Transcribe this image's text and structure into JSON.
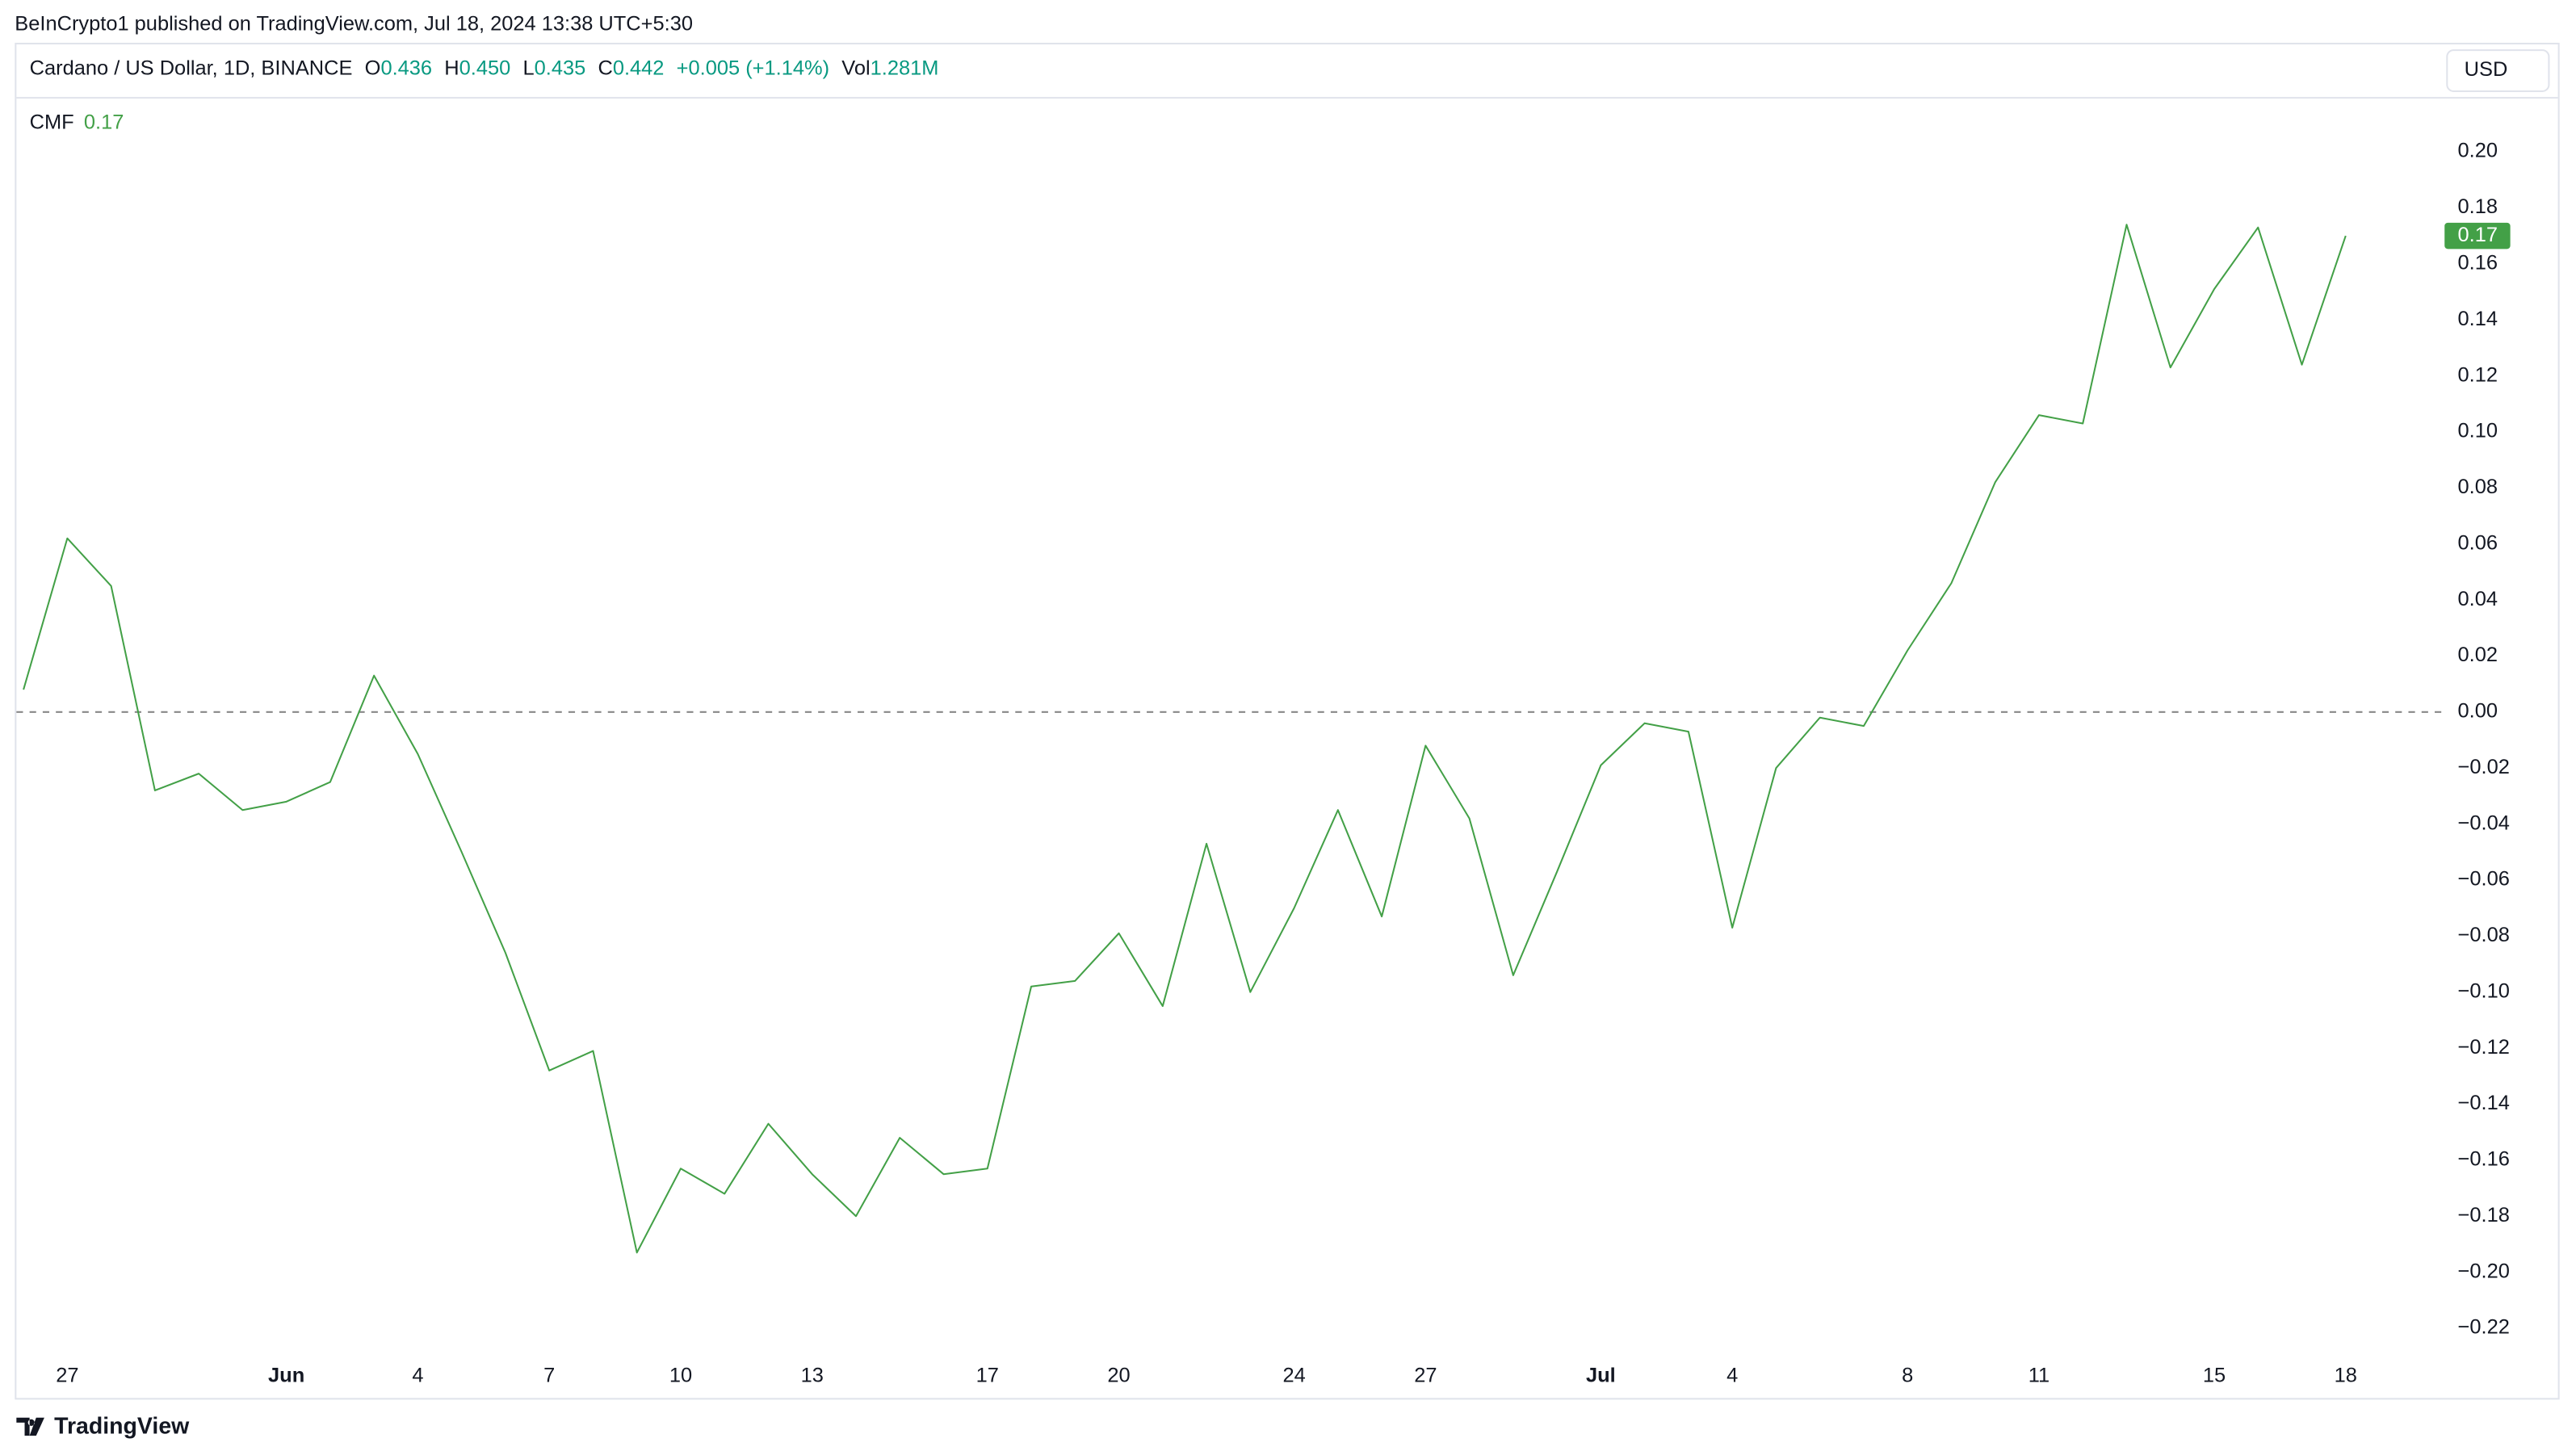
{
  "header": {
    "published": "BeInCrypto1 published on TradingView.com, Jul 18, 2024 13:38 UTC+5:30"
  },
  "symbol_bar": {
    "symbol": "Cardano / US Dollar, 1D, BINANCE",
    "open_label": "O",
    "open": "0.436",
    "high_label": "H",
    "high": "0.450",
    "low_label": "L",
    "low": "0.435",
    "close_label": "C",
    "close": "0.442",
    "change": "+0.005 (+1.14%)",
    "volume_label": "Vol",
    "volume": "1.281M",
    "currency": "USD"
  },
  "footer": {
    "brand": "TradingView"
  },
  "chart_data": {
    "type": "line",
    "indicator": "CMF",
    "indicator_value": "0.17",
    "categories": [
      null,
      "27",
      null,
      null,
      null,
      null,
      "Jun",
      null,
      null,
      "4",
      null,
      null,
      "7",
      null,
      null,
      "10",
      null,
      null,
      "13",
      null,
      null,
      null,
      "17",
      null,
      null,
      "20",
      null,
      null,
      null,
      "24",
      null,
      null,
      "27",
      null,
      null,
      null,
      "Jul",
      null,
      null,
      "4",
      null,
      null,
      null,
      "8",
      null,
      null,
      "11",
      null,
      null,
      null,
      "15",
      null,
      null,
      "18"
    ],
    "series": [
      {
        "name": "CMF",
        "color": "#43a047",
        "values": [
          0.008,
          0.062,
          0.045,
          -0.028,
          -0.022,
          -0.035,
          -0.032,
          -0.025,
          0.013,
          -0.015,
          -0.05,
          -0.086,
          -0.128,
          -0.121,
          -0.193,
          -0.163,
          -0.172,
          -0.147,
          -0.165,
          -0.18,
          -0.152,
          -0.165,
          -0.163,
          -0.098,
          -0.096,
          -0.079,
          -0.105,
          -0.047,
          -0.1,
          -0.07,
          -0.035,
          -0.073,
          -0.012,
          -0.038,
          -0.094,
          -0.057,
          -0.019,
          -0.004,
          -0.007,
          -0.077,
          -0.02,
          -0.002,
          -0.005,
          0.022,
          0.046,
          0.082,
          0.106,
          0.103,
          0.174,
          0.123,
          0.151,
          0.173,
          0.124,
          0.17
        ],
        "last_value_label": "0.17"
      }
    ],
    "ylim": [
      -0.23,
      0.219
    ],
    "yticks": [
      {
        "value": 0.2,
        "label": "0.20"
      },
      {
        "value": 0.18,
        "label": "0.18"
      },
      {
        "value": 0.16,
        "label": "0.16"
      },
      {
        "value": 0.14,
        "label": "0.14"
      },
      {
        "value": 0.12,
        "label": "0.12"
      },
      {
        "value": 0.1,
        "label": "0.10"
      },
      {
        "value": 0.08,
        "label": "0.08"
      },
      {
        "value": 0.06,
        "label": "0.06"
      },
      {
        "value": 0.04,
        "label": "0.04"
      },
      {
        "value": 0.02,
        "label": "0.02"
      },
      {
        "value": 0,
        "label": "0.00"
      },
      {
        "value": -0.02,
        "label": "−0.02"
      },
      {
        "value": -0.04,
        "label": "−0.04"
      },
      {
        "value": -0.06,
        "label": "−0.06"
      },
      {
        "value": -0.08,
        "label": "−0.08"
      },
      {
        "value": -0.1,
        "label": "−0.10"
      },
      {
        "value": -0.12,
        "label": "−0.12"
      },
      {
        "value": -0.14,
        "label": "−0.14"
      },
      {
        "value": -0.16,
        "label": "−0.16"
      },
      {
        "value": -0.18,
        "label": "−0.18"
      },
      {
        "value": -0.2,
        "label": "−0.20"
      },
      {
        "value": -0.22,
        "label": "−0.22"
      }
    ],
    "zero_line": 0,
    "grid": false
  }
}
